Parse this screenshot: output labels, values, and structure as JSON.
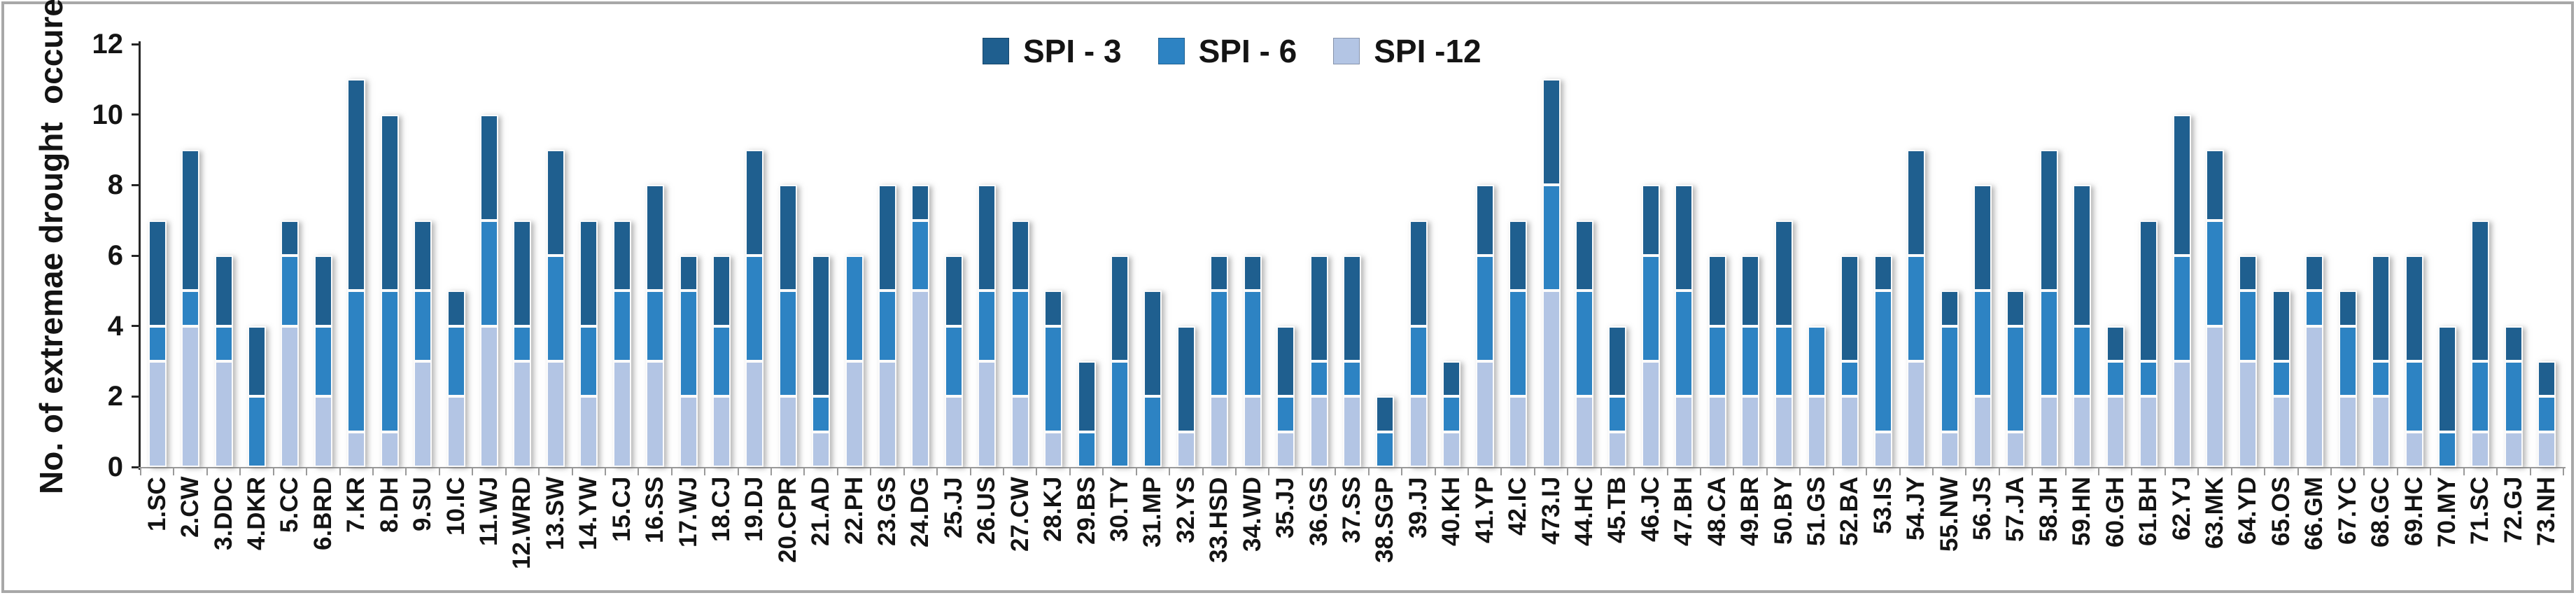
{
  "y_axis": {
    "title": "No. of extremae drought  occurence",
    "ticks": [
      0,
      2,
      4,
      6,
      8,
      10,
      12
    ]
  },
  "chart_data": {
    "type": "bar",
    "stacked": true,
    "title": "",
    "xlabel": "",
    "ylabel": "No. of extremae drought  occurence",
    "ylim": [
      0,
      12
    ],
    "yticks": [
      0,
      2,
      4,
      6,
      8,
      10,
      12
    ],
    "grid": false,
    "legend_position": "top-center",
    "legend_order": [
      "SPI - 3",
      "SPI - 6",
      "SPI -12"
    ],
    "stack_order_bottom_to_top": [
      "SPI -12",
      "SPI - 6",
      "SPI - 3"
    ],
    "categories": [
      "1.SC",
      "2.CW",
      "3.DDC",
      "4.DKR",
      "5.CC",
      "6.BRD",
      "7.KR",
      "8.DH",
      "9.SU",
      "10.IC",
      "11.WJ",
      "12.WRD",
      "13.SW",
      "14.YW",
      "15.CJ",
      "16.SS",
      "17.WJ",
      "18.CJ",
      "19.DJ",
      "20.CPR",
      "21.AD",
      "22.PH",
      "23.GS",
      "24.DG",
      "25.JJ",
      "26.US",
      "27.CW",
      "28.KJ",
      "29.BS",
      "30.TY",
      "31.MP",
      "32.YS",
      "33.HSD",
      "34.WD",
      "35.JJ",
      "36.GS",
      "37.SS",
      "38.SGP",
      "39.JJ",
      "40.KH",
      "41.YP",
      "42.IC",
      "473.IJ",
      "44.HC",
      "45.TB",
      "46.JC",
      "47.BH",
      "48.CA",
      "49.BR",
      "50.BY",
      "51.GS",
      "52.BA",
      "53.IS",
      "54.JY",
      "55.NW",
      "56.JS",
      "57.JA",
      "58.JH",
      "59.HN",
      "60.GH",
      "61.BH",
      "62.YJ",
      "63.MK",
      "64.YD",
      "65.OS",
      "66.GM",
      "67.YC",
      "68.GC",
      "69.HC",
      "70.MY",
      "71.SC",
      "72.GJ",
      "73.NH"
    ],
    "series": [
      {
        "name": "SPI - 3",
        "color": "#1F5F8F",
        "values": [
          3,
          4,
          2,
          2,
          1,
          2,
          6,
          5,
          2,
          1,
          3,
          3,
          3,
          3,
          2,
          3,
          1,
          2,
          3,
          3,
          4,
          0,
          3,
          1,
          2,
          3,
          2,
          1,
          2,
          3,
          3,
          3,
          1,
          1,
          2,
          3,
          3,
          1,
          3,
          1,
          2,
          2,
          3,
          2,
          2,
          2,
          3,
          2,
          2,
          3,
          0,
          3,
          1,
          3,
          1,
          3,
          1,
          4,
          4,
          1,
          4,
          4,
          2,
          1,
          2,
          1,
          1,
          3,
          3,
          3,
          4,
          1,
          1
        ]
      },
      {
        "name": "SPI - 6",
        "color": "#2D83C3",
        "values": [
          1,
          1,
          1,
          2,
          2,
          2,
          4,
          4,
          2,
          2,
          3,
          1,
          3,
          2,
          2,
          2,
          3,
          2,
          3,
          3,
          1,
          3,
          2,
          2,
          2,
          2,
          3,
          3,
          1,
          3,
          2,
          0,
          3,
          3,
          1,
          1,
          1,
          1,
          2,
          1,
          3,
          3,
          3,
          3,
          1,
          3,
          3,
          2,
          2,
          2,
          2,
          1,
          4,
          3,
          3,
          3,
          3,
          3,
          2,
          1,
          1,
          3,
          3,
          2,
          1,
          1,
          2,
          1,
          2,
          1,
          2,
          2,
          1
        ]
      },
      {
        "name": "SPI -12",
        "color": "#B3C5E4",
        "values": [
          3,
          4,
          3,
          0,
          4,
          2,
          1,
          1,
          3,
          2,
          4,
          3,
          3,
          2,
          3,
          3,
          2,
          2,
          3,
          2,
          1,
          3,
          3,
          5,
          2,
          3,
          2,
          1,
          0,
          0,
          0,
          1,
          2,
          2,
          1,
          2,
          2,
          0,
          2,
          1,
          3,
          2,
          5,
          2,
          1,
          3,
          2,
          2,
          2,
          2,
          2,
          2,
          1,
          3,
          1,
          2,
          1,
          2,
          2,
          2,
          2,
          3,
          4,
          3,
          2,
          4,
          2,
          2,
          1,
          0,
          1,
          1,
          1
        ]
      }
    ]
  }
}
